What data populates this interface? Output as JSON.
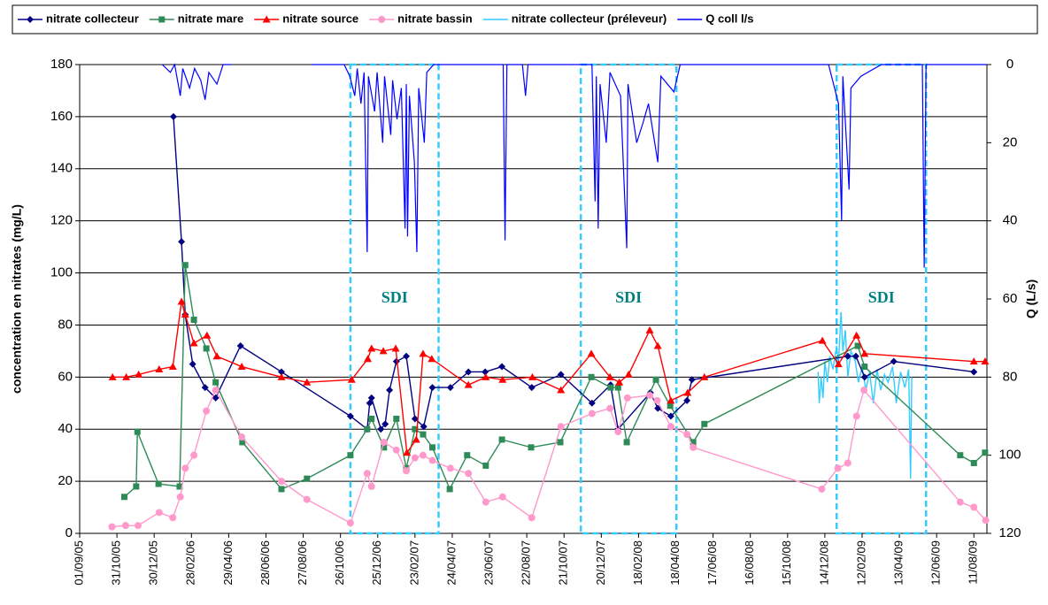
{
  "chart_data": {
    "type": "line",
    "y_label": "concentration en nitrates (mg/L)",
    "y2_label": "Q (L/s)",
    "xlim": [
      "2005-09-01",
      "2009-09-01"
    ],
    "xticks": [
      {
        "value": "2005-09-01",
        "label": "01/09/05"
      },
      {
        "value": "2005-10-31",
        "label": "31/10/05"
      },
      {
        "value": "2005-12-30",
        "label": "30/12/05"
      },
      {
        "value": "2006-02-28",
        "label": "28/02/06"
      },
      {
        "value": "2006-04-29",
        "label": "29/04/06"
      },
      {
        "value": "2006-06-28",
        "label": "28/06/06"
      },
      {
        "value": "2006-08-27",
        "label": "27/08/06"
      },
      {
        "value": "2006-10-26",
        "label": "26/10/06"
      },
      {
        "value": "2006-12-25",
        "label": "25/12/06"
      },
      {
        "value": "2007-02-23",
        "label": "23/02/07"
      },
      {
        "value": "2007-04-24",
        "label": "24/04/07"
      },
      {
        "value": "2007-06-23",
        "label": "23/06/07"
      },
      {
        "value": "2007-08-22",
        "label": "22/08/07"
      },
      {
        "value": "2007-10-21",
        "label": "21/10/07"
      },
      {
        "value": "2007-12-20",
        "label": "20/12/07"
      },
      {
        "value": "2008-02-18",
        "label": "18/02/08"
      },
      {
        "value": "2008-04-18",
        "label": "18/04/08"
      },
      {
        "value": "2008-06-17",
        "label": "17/06/08"
      },
      {
        "value": "2008-08-16",
        "label": "16/08/08"
      },
      {
        "value": "2008-10-15",
        "label": "15/10/08"
      },
      {
        "value": "2008-12-14",
        "label": "14/12/08"
      },
      {
        "value": "2009-02-12",
        "label": "12/02/09"
      },
      {
        "value": "2009-04-13",
        "label": "13/04/09"
      },
      {
        "value": "2009-06-12",
        "label": "12/06/09"
      },
      {
        "value": "2009-08-11",
        "label": "11/08/09"
      }
    ],
    "ylim": [
      0,
      180
    ],
    "yticks": [
      0,
      20,
      40,
      60,
      80,
      100,
      120,
      140,
      160,
      180
    ],
    "y2lim": [
      120,
      0
    ],
    "y2ticks": [
      0,
      20,
      40,
      60,
      80,
      100,
      120
    ],
    "grid": true,
    "sdi_periods": [
      {
        "start": "2006-11-11",
        "end": "2007-04-02",
        "label": "SDI"
      },
      {
        "start": "2007-11-17",
        "end": "2008-04-19",
        "label": "SDI"
      },
      {
        "start": "2009-01-02",
        "end": "2009-05-26",
        "label": "SDI"
      }
    ],
    "series": [
      {
        "name": "nitrate collecteur",
        "color": "#000080",
        "marker": "diamond",
        "x": [
          "2006-01-30",
          "2006-02-12",
          "2006-02-18",
          "2006-03-02",
          "2006-03-22",
          "2006-04-08",
          "2006-05-18",
          "2006-07-23",
          "2006-11-11",
          "2006-12-08",
          "2006-12-12",
          "2006-12-15",
          "2006-12-30",
          "2007-01-06",
          "2007-01-13",
          "2007-01-24",
          "2007-02-09",
          "2007-02-23",
          "2007-03-09",
          "2007-03-23",
          "2007-04-21",
          "2007-05-20",
          "2007-06-16",
          "2007-07-13",
          "2007-08-30",
          "2007-10-16",
          "2007-12-05",
          "2008-01-04",
          "2008-01-16",
          "2008-03-08",
          "2008-03-20",
          "2008-04-10",
          "2008-05-06",
          "2008-05-14",
          "2009-01-20",
          "2009-02-02",
          "2009-02-16",
          "2009-04-04",
          "2009-08-11"
        ],
        "values": [
          160,
          112,
          84,
          65,
          56,
          52,
          72,
          62,
          45,
          40,
          50,
          52,
          40,
          42,
          55,
          66,
          68,
          44,
          41,
          56,
          56,
          62,
          62,
          64,
          56,
          61,
          50,
          57,
          40,
          54,
          48,
          45,
          51,
          59,
          68,
          68,
          60,
          66,
          62
        ]
      },
      {
        "name": "nitrate mare",
        "color": "#2e8b57",
        "marker": "square",
        "x": [
          "2005-11-12",
          "2005-12-01",
          "2005-12-03",
          "2006-01-06",
          "2006-02-09",
          "2006-02-18",
          "2006-03-04",
          "2006-03-24",
          "2006-04-08",
          "2006-05-21",
          "2006-07-23",
          "2006-09-02",
          "2006-11-11",
          "2006-12-08",
          "2006-12-15",
          "2007-01-04",
          "2007-01-24",
          "2007-02-09",
          "2007-02-23",
          "2007-03-08",
          "2007-03-23",
          "2007-04-20",
          "2007-05-18",
          "2007-06-17",
          "2007-07-13",
          "2007-08-29",
          "2007-10-15",
          "2007-12-04",
          "2008-01-04",
          "2008-01-16",
          "2008-01-30",
          "2008-03-17",
          "2008-04-09",
          "2008-05-16",
          "2008-06-03",
          "2009-02-05",
          "2009-02-16",
          "2009-07-20",
          "2009-08-11",
          "2009-08-29"
        ],
        "values": [
          14,
          18,
          39,
          19,
          18,
          103,
          82,
          71,
          58,
          35,
          17,
          21,
          30,
          40,
          44,
          33,
          44,
          25,
          40,
          38,
          33,
          17,
          30,
          26,
          36,
          33,
          35,
          60,
          56,
          56,
          35,
          59,
          49,
          35,
          42,
          72,
          64,
          30,
          27,
          31
        ]
      },
      {
        "name": "nitrate source",
        "color": "#ff0000",
        "marker": "triangle",
        "x": [
          "2005-10-24",
          "2005-11-15",
          "2005-12-05",
          "2006-01-07",
          "2006-01-29",
          "2006-02-12",
          "2006-02-18",
          "2006-03-04",
          "2006-03-25",
          "2006-04-10",
          "2006-05-20",
          "2006-07-23",
          "2006-09-02",
          "2006-11-13",
          "2006-12-09",
          "2006-12-15",
          "2007-01-03",
          "2007-01-23",
          "2007-02-10",
          "2007-02-25",
          "2007-03-08",
          "2007-03-22",
          "2007-05-20",
          "2007-06-17",
          "2007-07-14",
          "2007-08-31",
          "2007-10-16",
          "2007-12-04",
          "2008-01-03",
          "2008-01-18",
          "2008-02-02",
          "2008-03-07",
          "2008-03-20",
          "2008-04-10",
          "2008-05-07",
          "2008-06-03",
          "2008-12-10",
          "2009-01-05",
          "2009-02-03",
          "2009-02-16",
          "2009-08-11",
          "2009-08-29"
        ],
        "values": [
          60,
          60,
          61,
          63,
          64,
          89,
          84,
          73,
          76,
          68,
          64,
          60,
          58,
          59,
          67,
          71,
          70,
          71,
          31,
          36,
          69,
          67,
          57,
          60,
          59,
          60,
          55,
          69,
          60,
          58,
          61,
          78,
          72,
          51,
          54,
          60,
          74,
          65,
          76,
          69,
          66,
          66
        ]
      },
      {
        "name": "nitrate bassin",
        "color": "#ff99cc",
        "marker": "circle",
        "x": [
          "2005-10-23",
          "2005-11-14",
          "2005-12-04",
          "2006-01-07",
          "2006-01-29",
          "2006-02-10",
          "2006-02-18",
          "2006-03-04",
          "2006-03-24",
          "2006-04-08",
          "2006-05-20",
          "2006-07-23",
          "2006-09-02",
          "2006-11-11",
          "2006-12-08",
          "2006-12-15",
          "2007-01-04",
          "2007-01-24",
          "2007-02-09",
          "2007-02-23",
          "2007-03-08",
          "2007-03-23",
          "2007-04-21",
          "2007-05-20",
          "2007-06-17",
          "2007-07-14",
          "2007-08-30",
          "2007-10-16",
          "2007-12-05",
          "2008-01-03",
          "2008-01-16",
          "2008-01-31",
          "2008-03-07",
          "2008-03-19",
          "2008-04-10",
          "2008-05-06",
          "2008-05-16",
          "2008-12-09",
          "2009-01-04",
          "2009-01-20",
          "2009-02-03",
          "2009-02-15",
          "2009-07-20",
          "2009-08-11",
          "2009-08-30"
        ],
        "values": [
          2.5,
          3,
          3,
          8,
          6,
          14,
          25,
          30,
          47,
          55,
          37,
          20,
          13,
          4,
          23,
          18,
          35,
          32,
          24,
          29,
          30,
          28,
          25,
          23,
          12,
          14,
          6,
          41,
          46,
          48,
          39,
          52,
          53,
          51,
          41,
          38,
          33,
          17,
          25,
          27,
          45,
          55,
          12,
          10,
          5
        ]
      },
      {
        "name": "nitrate collecteur (préleveur)",
        "color": "#33ccff",
        "marker": "none",
        "x": [
          "2008-12-03",
          "2008-12-05",
          "2008-12-08",
          "2008-12-11",
          "2008-12-14",
          "2008-12-18",
          "2008-12-22",
          "2008-12-27",
          "2009-01-02",
          "2009-01-05",
          "2009-01-09",
          "2009-01-12",
          "2009-01-16",
          "2009-01-20",
          "2009-01-25",
          "2009-02-01",
          "2009-02-06",
          "2009-02-12",
          "2009-02-18",
          "2009-02-24",
          "2009-03-02",
          "2009-03-08",
          "2009-03-14",
          "2009-03-20",
          "2009-03-26",
          "2009-04-02",
          "2009-04-08",
          "2009-04-15",
          "2009-04-22",
          "2009-04-28",
          "2009-05-01",
          "2009-05-03"
        ],
        "values": [
          62,
          50,
          60,
          52,
          66,
          58,
          68,
          63,
          72,
          65,
          85,
          70,
          78,
          60,
          70,
          66,
          58,
          64,
          55,
          62,
          50,
          63,
          55,
          61,
          58,
          64,
          50,
          62,
          56,
          63,
          21,
          60
        ]
      },
      {
        "name": "Q coll l/s",
        "color": "#0000ff",
        "marker": "none",
        "axis": "y2",
        "x": [
          "2006-01-12",
          "2006-01-25",
          "2006-02-01",
          "2006-02-10",
          "2006-02-14",
          "2006-02-25",
          "2006-03-05",
          "2006-03-15",
          "2006-03-22",
          "2006-03-28",
          "2006-04-10",
          "2006-04-20",
          "2006-05-03",
          "2006-06-01",
          "2006-09-10",
          "2006-11-01",
          "2006-11-10",
          "2006-11-18",
          "2006-11-22",
          "2006-11-28",
          "2006-12-03",
          "2006-12-08",
          "2006-12-10",
          "2006-12-20",
          "2006-12-24",
          "2007-01-02",
          "2007-01-05",
          "2007-01-15",
          "2007-01-18",
          "2007-01-25",
          "2007-02-01",
          "2007-02-07",
          "2007-02-09",
          "2007-02-11",
          "2007-02-14",
          "2007-02-22",
          "2007-02-26",
          "2007-03-01",
          "2007-03-10",
          "2007-03-14",
          "2007-03-25",
          "2007-07-15",
          "2007-07-18",
          "2007-07-21",
          "2007-08-15",
          "2007-08-20",
          "2007-08-24",
          "2007-12-05",
          "2007-12-10",
          "2007-12-12",
          "2007-12-15",
          "2007-12-18",
          "2007-12-28",
          "2008-01-03",
          "2008-01-20",
          "2008-01-30",
          "2008-02-01",
          "2008-02-15",
          "2008-02-25",
          "2008-03-05",
          "2008-03-20",
          "2008-03-25",
          "2008-04-15",
          "2008-04-25",
          "2008-12-20",
          "2009-01-05",
          "2009-01-10",
          "2009-01-12",
          "2009-01-22",
          "2009-01-25",
          "2009-02-10",
          "2009-03-15",
          "2009-05-20",
          "2009-05-23",
          "2009-05-26",
          "2009-08-31"
        ],
        "values": [
          0,
          2,
          0,
          8,
          1,
          6,
          1,
          4,
          9,
          2,
          5,
          0,
          0,
          null,
          0,
          0,
          3,
          8,
          1,
          10,
          2,
          48,
          3,
          12,
          2,
          20,
          3,
          18,
          4,
          14,
          6,
          42,
          5,
          44,
          8,
          25,
          48,
          6,
          20,
          2,
          0,
          0,
          45,
          0,
          0,
          8,
          0,
          0,
          35,
          3,
          42,
          5,
          20,
          2,
          8,
          47,
          5,
          20,
          15,
          10,
          25,
          3,
          7,
          0,
          0,
          10,
          40,
          3,
          32,
          6,
          3,
          0,
          0,
          52,
          0,
          0
        ]
      }
    ]
  }
}
